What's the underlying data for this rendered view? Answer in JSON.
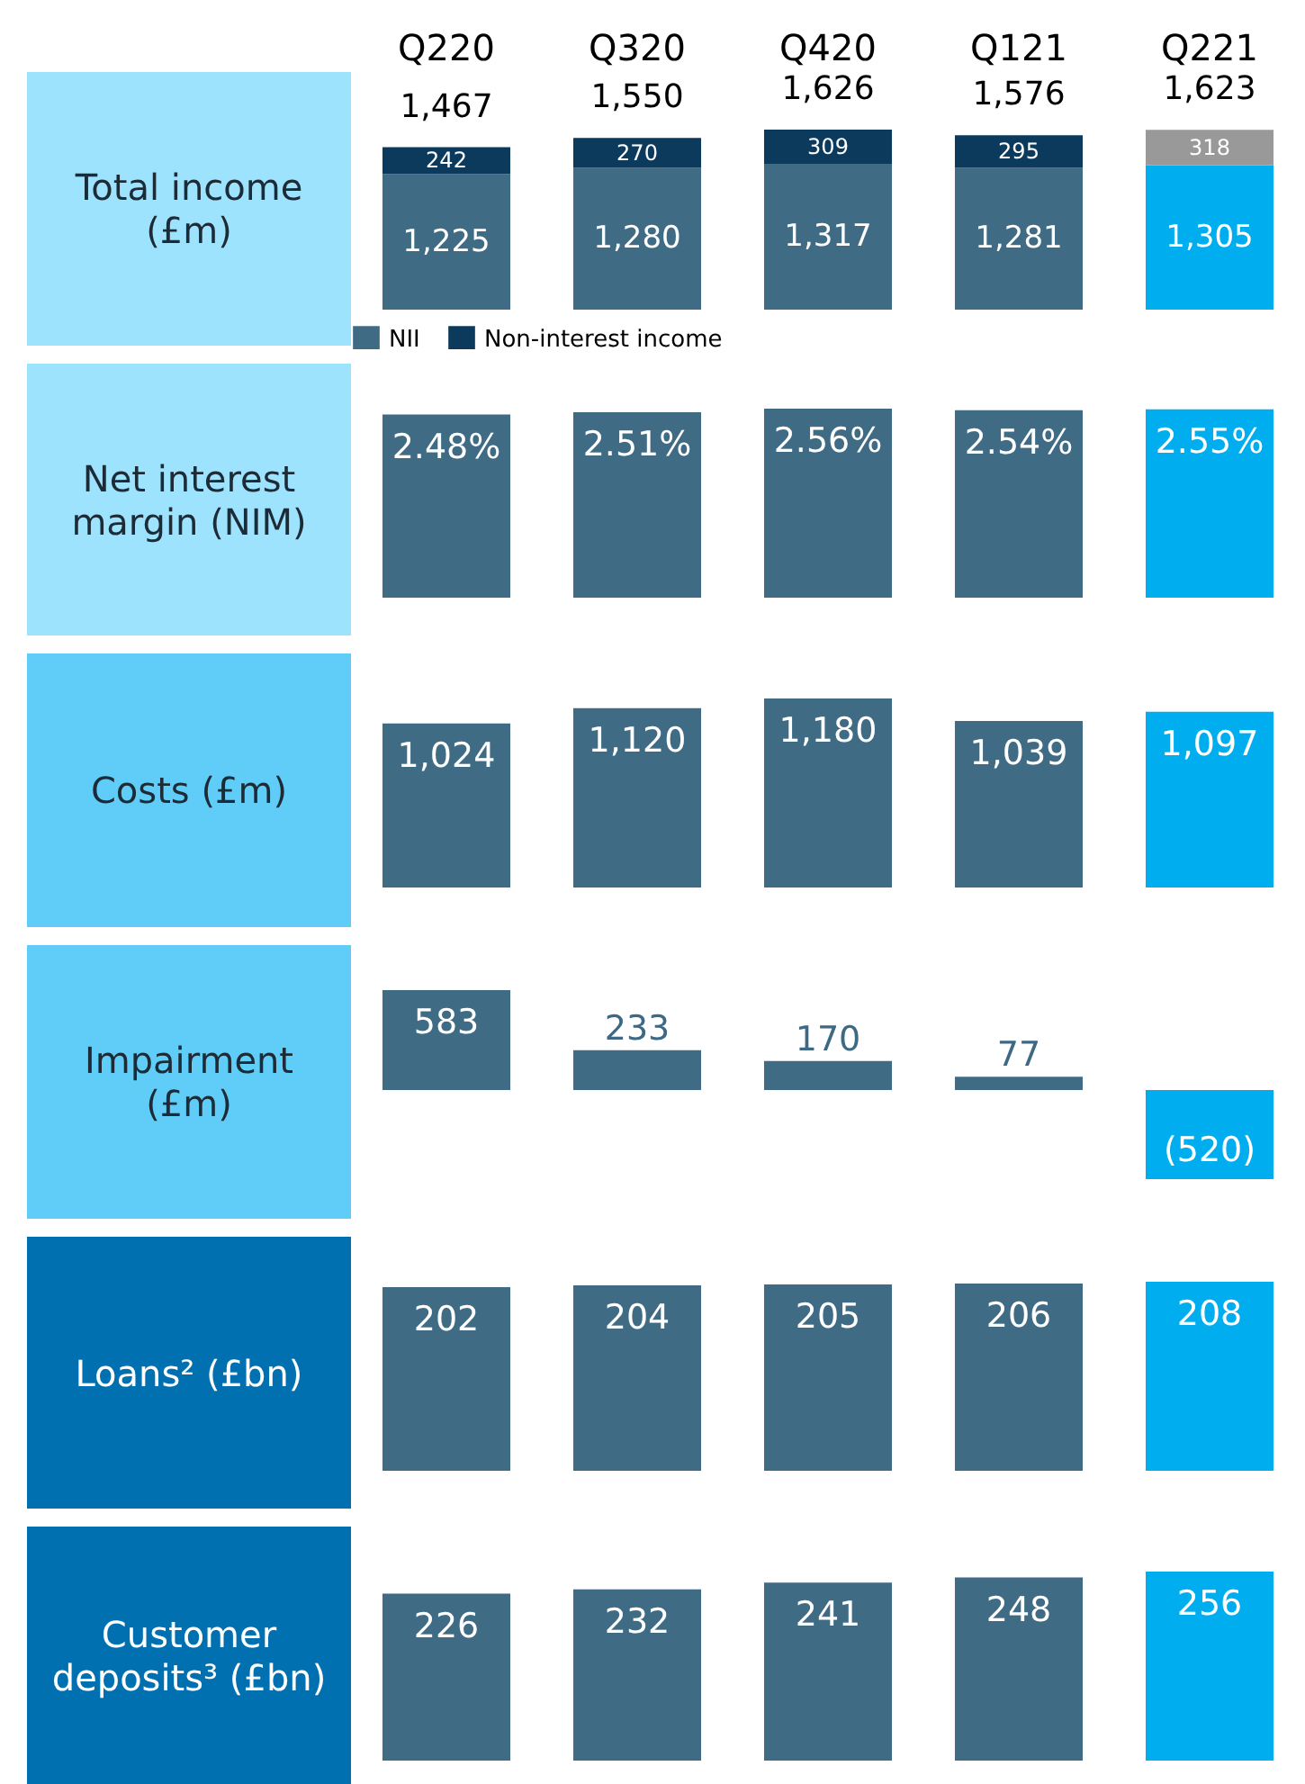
{
  "chart_data": [
    {
      "type": "bar",
      "ylabel": "Total income (£m)",
      "categories": [
        "Q220",
        "Q320",
        "Q420",
        "Q121",
        "Q221"
      ],
      "stacked": true,
      "tick_labels": "x",
      "legend": "bottom left",
      "totals": [
        "1,467",
        "1,550",
        "1,626",
        "1,576",
        "1,623"
      ],
      "series": [
        {
          "name": "NII",
          "colors": [
            "#3f6b85",
            "#3f6b85",
            "#3f6b85",
            "#3f6b85",
            "#00aeef"
          ],
          "values": [
            1225,
            1280,
            1317,
            1281,
            1305
          ],
          "value_labels": [
            "1,225",
            "1,280",
            "1,317",
            "1,281",
            "1,305"
          ]
        },
        {
          "name": "Non-interest income",
          "colors": [
            "#0b3a5c",
            "#0b3a5c",
            "#0b3a5c",
            "#0b3a5c",
            "#999999"
          ],
          "values": [
            242,
            270,
            309,
            295,
            318
          ],
          "value_labels": [
            "242",
            "270",
            "309",
            "295",
            "318"
          ]
        }
      ]
    },
    {
      "type": "bar",
      "ylabel": "Net interest margin (NIM)",
      "categories": [
        null,
        null,
        null,
        null,
        null
      ],
      "colors": [
        "#3f6b85",
        "#3f6b85",
        "#3f6b85",
        "#3f6b85",
        "#00aeef"
      ],
      "values": [
        2.48,
        2.51,
        2.56,
        2.54,
        2.55
      ],
      "value_labels": [
        "2.48%",
        "2.51%",
        "2.56%",
        "2.54%",
        "2.55%"
      ]
    },
    {
      "type": "bar",
      "ylabel": "Costs (£m)",
      "categories": [
        null,
        null,
        null,
        null,
        null
      ],
      "colors": [
        "#3f6b85",
        "#3f6b85",
        "#3f6b85",
        "#3f6b85",
        "#00aeef"
      ],
      "values": [
        1024,
        1120,
        1180,
        1039,
        1097
      ],
      "value_labels": [
        "1,024",
        "1,120",
        "1,180",
        "1,039",
        "1,097"
      ]
    },
    {
      "type": "bar",
      "ylabel": "Impairment (£m)",
      "categories": [
        null,
        null,
        null,
        null,
        null
      ],
      "colors": [
        "#3f6b85",
        "#3f6b85",
        "#3f6b85",
        "#3f6b85",
        "#00aeef"
      ],
      "values": [
        583,
        233,
        170,
        77,
        -520
      ],
      "value_labels": [
        "583",
        "233",
        "170",
        "77",
        "(520)"
      ]
    },
    {
      "type": "bar",
      "ylabel": "Loans² (£bn)",
      "categories": [
        null,
        null,
        null,
        null,
        null
      ],
      "colors": [
        "#3f6b85",
        "#3f6b85",
        "#3f6b85",
        "#3f6b85",
        "#00aeef"
      ],
      "values": [
        202,
        204,
        205,
        206,
        208
      ],
      "value_labels": [
        "202",
        "204",
        "205",
        "206",
        "208"
      ]
    },
    {
      "type": "bar",
      "ylabel": "Customer deposits³ (£bn)",
      "categories": [
        null,
        null,
        null,
        null,
        null
      ],
      "colors": [
        "#3f6b85",
        "#3f6b85",
        "#3f6b85",
        "#3f6b85",
        "#00aeef"
      ],
      "values": [
        226,
        232,
        241,
        248,
        256
      ],
      "value_labels": [
        "226",
        "232",
        "241",
        "248",
        "256"
      ]
    }
  ]
}
